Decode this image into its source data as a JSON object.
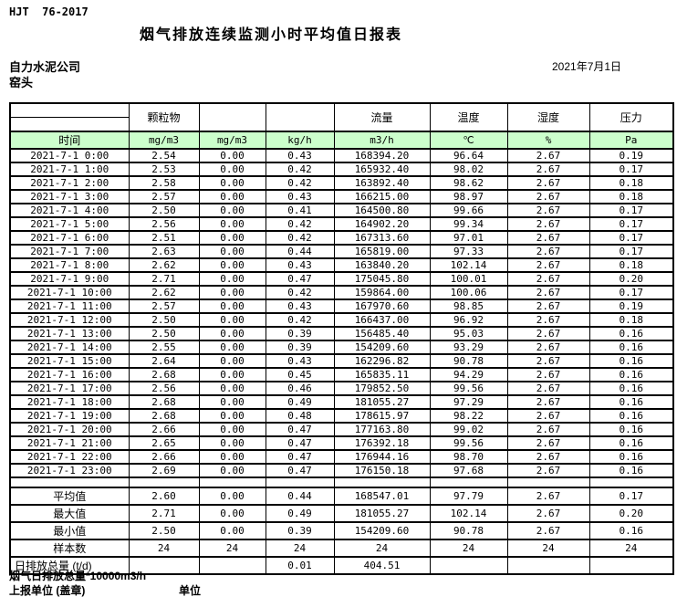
{
  "header": {
    "standard": "HJT  76-2017",
    "title": "烟气排放连续监测小时平均值日报表",
    "company": "自力水泥公司",
    "location": "窑头",
    "date": "2021年7月1日"
  },
  "table": {
    "time_header": "时间",
    "group_headers": {
      "particulate": "颗粒物",
      "col3": "",
      "col4": "",
      "flow": "流量",
      "temperature": "温度",
      "humidity": "湿度",
      "pressure": "压力"
    },
    "units": [
      "mg/m3",
      "mg/m3",
      "kg/h",
      "m3/h",
      "℃",
      "%",
      "Pa"
    ],
    "rows": [
      {
        "time": "2021-7-1 0:00",
        "values": [
          "2.54",
          "0.00",
          "0.43",
          "168394.20",
          "96.64",
          "2.67",
          "0.19"
        ]
      },
      {
        "time": "2021-7-1 1:00",
        "values": [
          "2.53",
          "0.00",
          "0.42",
          "165932.40",
          "98.02",
          "2.67",
          "0.17"
        ]
      },
      {
        "time": "2021-7-1 2:00",
        "values": [
          "2.58",
          "0.00",
          "0.42",
          "163892.40",
          "98.62",
          "2.67",
          "0.18"
        ]
      },
      {
        "time": "2021-7-1 3:00",
        "values": [
          "2.57",
          "0.00",
          "0.43",
          "166215.00",
          "98.97",
          "2.67",
          "0.18"
        ]
      },
      {
        "time": "2021-7-1 4:00",
        "values": [
          "2.50",
          "0.00",
          "0.41",
          "164500.80",
          "99.66",
          "2.67",
          "0.17"
        ]
      },
      {
        "time": "2021-7-1 5:00",
        "values": [
          "2.56",
          "0.00",
          "0.42",
          "164902.20",
          "99.34",
          "2.67",
          "0.17"
        ]
      },
      {
        "time": "2021-7-1 6:00",
        "values": [
          "2.51",
          "0.00",
          "0.42",
          "167313.60",
          "97.01",
          "2.67",
          "0.17"
        ]
      },
      {
        "time": "2021-7-1 7:00",
        "values": [
          "2.63",
          "0.00",
          "0.44",
          "165819.00",
          "97.33",
          "2.67",
          "0.17"
        ]
      },
      {
        "time": "2021-7-1 8:00",
        "values": [
          "2.62",
          "0.00",
          "0.43",
          "163840.20",
          "102.14",
          "2.67",
          "0.18"
        ]
      },
      {
        "time": "2021-7-1 9:00",
        "values": [
          "2.71",
          "0.00",
          "0.47",
          "175045.80",
          "100.01",
          "2.67",
          "0.20"
        ]
      },
      {
        "time": "2021-7-1 10:00",
        "values": [
          "2.62",
          "0.00",
          "0.42",
          "159864.00",
          "100.06",
          "2.67",
          "0.17"
        ]
      },
      {
        "time": "2021-7-1 11:00",
        "values": [
          "2.57",
          "0.00",
          "0.43",
          "167970.60",
          "98.85",
          "2.67",
          "0.19"
        ]
      },
      {
        "time": "2021-7-1 12:00",
        "values": [
          "2.50",
          "0.00",
          "0.42",
          "166437.00",
          "96.92",
          "2.67",
          "0.18"
        ]
      },
      {
        "time": "2021-7-1 13:00",
        "values": [
          "2.50",
          "0.00",
          "0.39",
          "156485.40",
          "95.03",
          "2.67",
          "0.16"
        ]
      },
      {
        "time": "2021-7-1 14:00",
        "values": [
          "2.55",
          "0.00",
          "0.39",
          "154209.60",
          "93.29",
          "2.67",
          "0.16"
        ]
      },
      {
        "time": "2021-7-1 15:00",
        "values": [
          "2.64",
          "0.00",
          "0.43",
          "162296.82",
          "90.78",
          "2.67",
          "0.16"
        ]
      },
      {
        "time": "2021-7-1 16:00",
        "values": [
          "2.68",
          "0.00",
          "0.45",
          "165835.11",
          "94.29",
          "2.67",
          "0.16"
        ]
      },
      {
        "time": "2021-7-1 17:00",
        "values": [
          "2.56",
          "0.00",
          "0.46",
          "179852.50",
          "99.56",
          "2.67",
          "0.16"
        ]
      },
      {
        "time": "2021-7-1 18:00",
        "values": [
          "2.68",
          "0.00",
          "0.49",
          "181055.27",
          "97.29",
          "2.67",
          "0.16"
        ]
      },
      {
        "time": "2021-7-1 19:00",
        "values": [
          "2.68",
          "0.00",
          "0.48",
          "178615.97",
          "98.22",
          "2.67",
          "0.16"
        ]
      },
      {
        "time": "2021-7-1 20:00",
        "values": [
          "2.66",
          "0.00",
          "0.47",
          "177163.80",
          "99.02",
          "2.67",
          "0.16"
        ]
      },
      {
        "time": "2021-7-1 21:00",
        "values": [
          "2.65",
          "0.00",
          "0.47",
          "176392.18",
          "99.56",
          "2.67",
          "0.16"
        ]
      },
      {
        "time": "2021-7-1 22:00",
        "values": [
          "2.66",
          "0.00",
          "0.47",
          "176944.16",
          "98.70",
          "2.67",
          "0.16"
        ]
      },
      {
        "time": "2021-7-1 23:00",
        "values": [
          "2.69",
          "0.00",
          "0.47",
          "176150.18",
          "97.68",
          "2.67",
          "0.16"
        ]
      }
    ],
    "summary": [
      {
        "label": "平均值",
        "values": [
          "2.60",
          "0.00",
          "0.44",
          "168547.01",
          "97.79",
          "2.67",
          "0.17"
        ]
      },
      {
        "label": "最大值",
        "values": [
          "2.71",
          "0.00",
          "0.49",
          "181055.27",
          "102.14",
          "2.67",
          "0.20"
        ]
      },
      {
        "label": "最小值",
        "values": [
          "2.50",
          "0.00",
          "0.39",
          "154209.60",
          "90.78",
          "2.67",
          "0.16"
        ]
      },
      {
        "label": "样本数",
        "values": [
          "24",
          "24",
          "24",
          "24",
          "24",
          "24",
          "24"
        ]
      },
      {
        "label": "日排放总量 (t/d)",
        "values": [
          "",
          "",
          "0.01",
          "404.51",
          "",
          "",
          ""
        ]
      }
    ]
  },
  "footer": {
    "note": "烟气日排放总量*10000m3/h",
    "report_unit": "上报单位 (盖章)",
    "unit_label": "单位"
  },
  "colors": {
    "header_green": "#ccffcc"
  }
}
